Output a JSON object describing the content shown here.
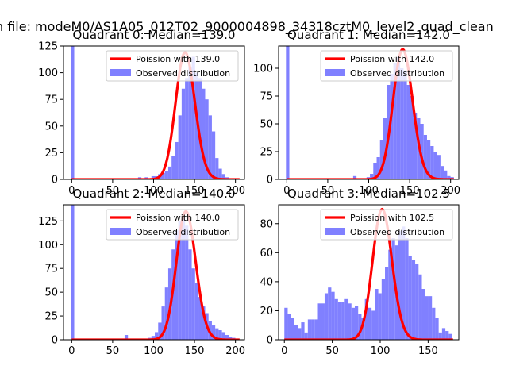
{
  "figure": {
    "suptitle": "n file: modeM0/AS1A05_012T02_9000004898_34318cztM0_level2_quad_clean"
  },
  "colors": {
    "poisson_line": "#ff0000",
    "histogram": "#8080ff",
    "axes": "#000000",
    "background": "#ffffff"
  },
  "chart_data": [
    {
      "type": "bar",
      "title": "Quadrant 0: Median=139.0",
      "xlim": [
        -10,
        211
      ],
      "ylim": [
        0,
        125
      ],
      "xticks": [
        0,
        50,
        100,
        150,
        200
      ],
      "yticks": [
        0,
        25,
        50,
        75,
        100,
        125
      ],
      "legend": {
        "placement": "top-right",
        "poisson_label": "Poission with 139.0",
        "observed_label": "Observed distribution"
      },
      "poisson": {
        "mean": 139.0,
        "peak": 119
      },
      "histogram": {
        "bin_start": -1,
        "bin_width": 4.1,
        "values": [
          125,
          0,
          0,
          0,
          0,
          0,
          0,
          0,
          0,
          0,
          0,
          0,
          0,
          0,
          0,
          1,
          0,
          1,
          1,
          0,
          2,
          1,
          2,
          1,
          3,
          3,
          5,
          6,
          8,
          12,
          22,
          35,
          60,
          85,
          95,
          105,
          115,
          100,
          95,
          85,
          75,
          60,
          45,
          20,
          10,
          5,
          2,
          1,
          0,
          1
        ]
      },
      "ylabel": "",
      "xlabel": ""
    },
    {
      "type": "bar",
      "title": "Quadrant 1: Median=142.0",
      "xlim": [
        -10,
        210
      ],
      "ylim": [
        0,
        120
      ],
      "xticks": [
        0,
        50,
        100,
        150,
        200
      ],
      "yticks": [
        0,
        25,
        50,
        75,
        100
      ],
      "legend": {
        "placement": "top-right",
        "poisson_label": "Poission with 142.0",
        "observed_label": "Observed distribution"
      },
      "poisson": {
        "mean": 142.0,
        "peak": 117
      },
      "histogram": {
        "bin_start": -1,
        "bin_width": 4.1,
        "values": [
          120,
          0,
          0,
          0,
          0,
          0,
          0,
          0,
          0,
          0,
          0,
          0,
          0,
          0,
          0,
          0,
          0,
          0,
          1,
          0,
          3,
          0,
          1,
          0,
          2,
          5,
          15,
          20,
          35,
          55,
          85,
          95,
          105,
          110,
          100,
          98,
          85,
          75,
          60,
          55,
          50,
          40,
          35,
          30,
          25,
          22,
          12,
          8,
          3,
          2
        ]
      },
      "ylabel": "",
      "xlabel": ""
    },
    {
      "type": "bar",
      "title": "Quadrant 2: Median=140.0",
      "xlim": [
        -10,
        211
      ],
      "ylim": [
        0,
        142
      ],
      "xticks": [
        0,
        50,
        100,
        150,
        200
      ],
      "yticks": [
        0,
        25,
        50,
        75,
        100,
        125
      ],
      "legend": {
        "placement": "top-right",
        "poisson_label": "Poission with 140.0",
        "observed_label": "Observed distribution"
      },
      "poisson": {
        "mean": 140.0,
        "peak": 135
      },
      "histogram": {
        "bin_start": -1,
        "bin_width": 4.1,
        "values": [
          142,
          0,
          0,
          0,
          0,
          0,
          0,
          0,
          0,
          0,
          0,
          0,
          0,
          0,
          0,
          0,
          5,
          0,
          0,
          0,
          0,
          0,
          0,
          2,
          4,
          8,
          18,
          35,
          55,
          75,
          95,
          115,
          125,
          130,
          120,
          95,
          75,
          60,
          45,
          35,
          28,
          20,
          15,
          12,
          10,
          8,
          5,
          3,
          2,
          1
        ]
      },
      "ylabel": "",
      "xlabel": ""
    },
    {
      "type": "bar",
      "title": "Quadrant 3: Median=102.5",
      "xlim": [
        -6,
        182
      ],
      "ylim": [
        0,
        93
      ],
      "xticks": [
        0,
        50,
        100,
        150
      ],
      "yticks": [
        0,
        20,
        40,
        60,
        80
      ],
      "legend": {
        "placement": "top-right",
        "poisson_label": "Poission with 102.5",
        "observed_label": "Observed distribution"
      },
      "poisson": {
        "mean": 102.5,
        "peak": 90
      },
      "histogram": {
        "bin_start": 0,
        "bin_width": 3.5,
        "values": [
          22,
          18,
          15,
          10,
          8,
          12,
          5,
          14,
          14,
          14,
          25,
          25,
          32,
          36,
          33,
          28,
          26,
          26,
          28,
          25,
          22,
          23,
          18,
          15,
          28,
          22,
          20,
          35,
          32,
          42,
          50,
          62,
          70,
          65,
          75,
          78,
          70,
          58,
          55,
          52,
          45,
          35,
          30,
          30,
          22,
          15,
          5,
          8,
          6,
          4
        ]
      },
      "ylabel": "",
      "xlabel": ""
    }
  ]
}
